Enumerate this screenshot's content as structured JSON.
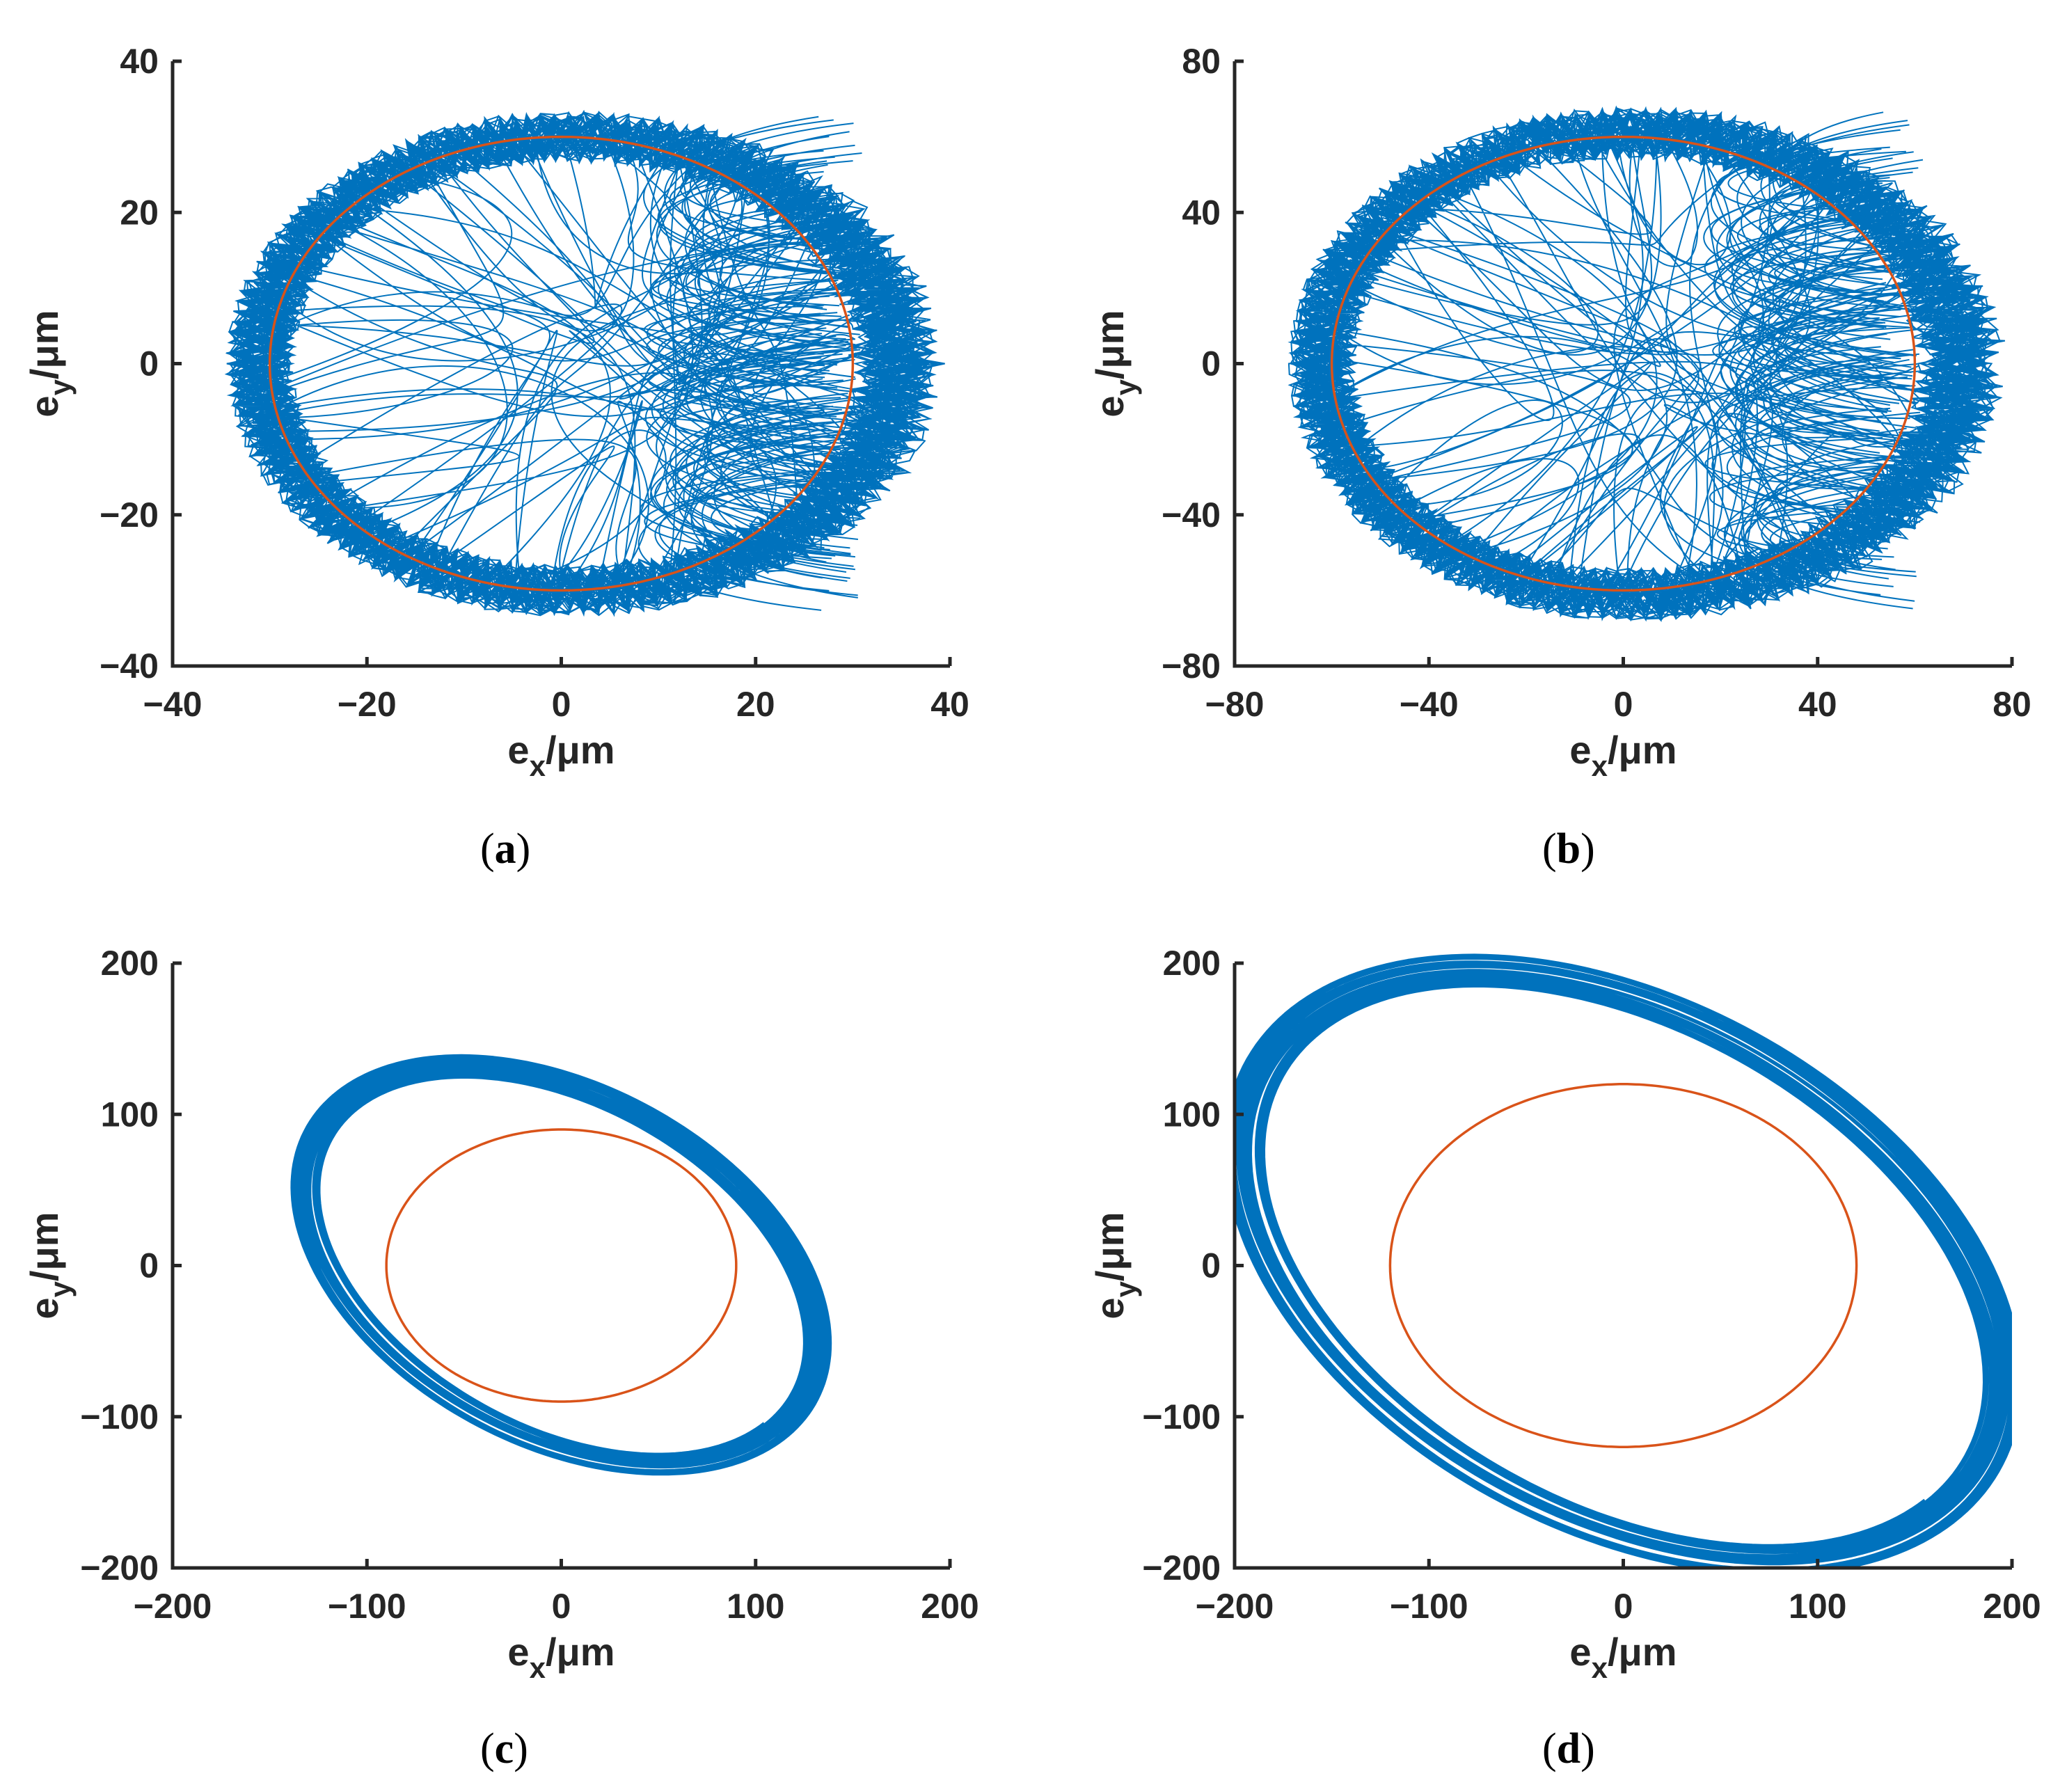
{
  "chart_data": [
    {
      "id": "a",
      "type": "line",
      "caption": "a",
      "xlabel": {
        "base": "e",
        "sub": "x",
        "unit": "/μm"
      },
      "ylabel": {
        "base": "e",
        "sub": "y",
        "unit": "/μm"
      },
      "xlim": [
        -40,
        40
      ],
      "ylim": [
        -40,
        40
      ],
      "xticks": [
        -40,
        -20,
        0,
        20,
        40
      ],
      "yticks": [
        -40,
        -20,
        0,
        20,
        40
      ],
      "xtick_labels": [
        "−40",
        "−20",
        "0",
        "20",
        "40"
      ],
      "ytick_labels": [
        "−40",
        "−20",
        "0",
        "20",
        "40"
      ],
      "series": [
        {
          "kind": "trajectory",
          "color": "#0072BD",
          "center": [
            0,
            0
          ],
          "rx": 31,
          "ry": 30,
          "band": 3.5,
          "chaos": 1.0
        },
        {
          "kind": "circle",
          "color": "#D95319",
          "center": [
            0,
            0
          ],
          "rx": 30,
          "ry": 30
        }
      ]
    },
    {
      "id": "b",
      "type": "line",
      "caption": "b",
      "xlabel": {
        "base": "e",
        "sub": "x",
        "unit": "/μm"
      },
      "ylabel": {
        "base": "e",
        "sub": "y",
        "unit": "/μm"
      },
      "xlim": [
        -80,
        80
      ],
      "ylim": [
        -80,
        80
      ],
      "xticks": [
        -80,
        -40,
        0,
        40,
        80
      ],
      "yticks": [
        -80,
        -40,
        0,
        40,
        80
      ],
      "xtick_labels": [
        "−80",
        "−40",
        "0",
        "40",
        "80"
      ],
      "ytick_labels": [
        "−80",
        "−40",
        "0",
        "40",
        "80"
      ],
      "series": [
        {
          "kind": "trajectory",
          "color": "#0072BD",
          "center": [
            0,
            0
          ],
          "rx": 62,
          "ry": 61,
          "band": 7,
          "chaos": 1.0
        },
        {
          "kind": "circle",
          "color": "#D95319",
          "center": [
            0,
            0
          ],
          "rx": 60,
          "ry": 60
        }
      ]
    },
    {
      "id": "c",
      "type": "line",
      "caption": "c",
      "xlabel": {
        "base": "e",
        "sub": "x",
        "unit": "/μm"
      },
      "ylabel": {
        "base": "e",
        "sub": "y",
        "unit": "/μm"
      },
      "xlim": [
        -200,
        200
      ],
      "ylim": [
        -200,
        200
      ],
      "xticks": [
        -200,
        -100,
        0,
        100,
        200
      ],
      "yticks": [
        -200,
        -100,
        0,
        100,
        200
      ],
      "xtick_labels": [
        "−200",
        "−100",
        "0",
        "100",
        "200"
      ],
      "ytick_labels": [
        "−200",
        "−100",
        "0",
        "100",
        "200"
      ],
      "series": [
        {
          "kind": "orbit",
          "color": "#0072BD",
          "center": [
            0,
            0
          ],
          "a": 155,
          "b": 103,
          "angle_deg": -45,
          "band": 9
        },
        {
          "kind": "circle",
          "color": "#D95319",
          "center": [
            0,
            0
          ],
          "rx": 90,
          "ry": 90
        }
      ]
    },
    {
      "id": "d",
      "type": "line",
      "caption": "d",
      "xlabel": {
        "base": "e",
        "sub": "x",
        "unit": "/μm"
      },
      "ylabel": {
        "base": "e",
        "sub": "y",
        "unit": "/μm"
      },
      "xlim": [
        -200,
        200
      ],
      "ylim": [
        -200,
        200
      ],
      "xticks": [
        -200,
        -100,
        0,
        100,
        200
      ],
      "yticks": [
        -200,
        -100,
        0,
        100,
        200
      ],
      "xtick_labels": [
        "−200",
        "−100",
        "0",
        "100",
        "200"
      ],
      "ytick_labels": [
        "−200",
        "−100",
        "0",
        "100",
        "200"
      ],
      "series": [
        {
          "kind": "orbit",
          "color": "#0072BD",
          "center": [
            0,
            0
          ],
          "a": 230,
          "b": 152,
          "angle_deg": -45,
          "band": 13
        },
        {
          "kind": "circle",
          "color": "#D95319",
          "center": [
            0,
            0
          ],
          "rx": 120,
          "ry": 120
        }
      ]
    }
  ]
}
